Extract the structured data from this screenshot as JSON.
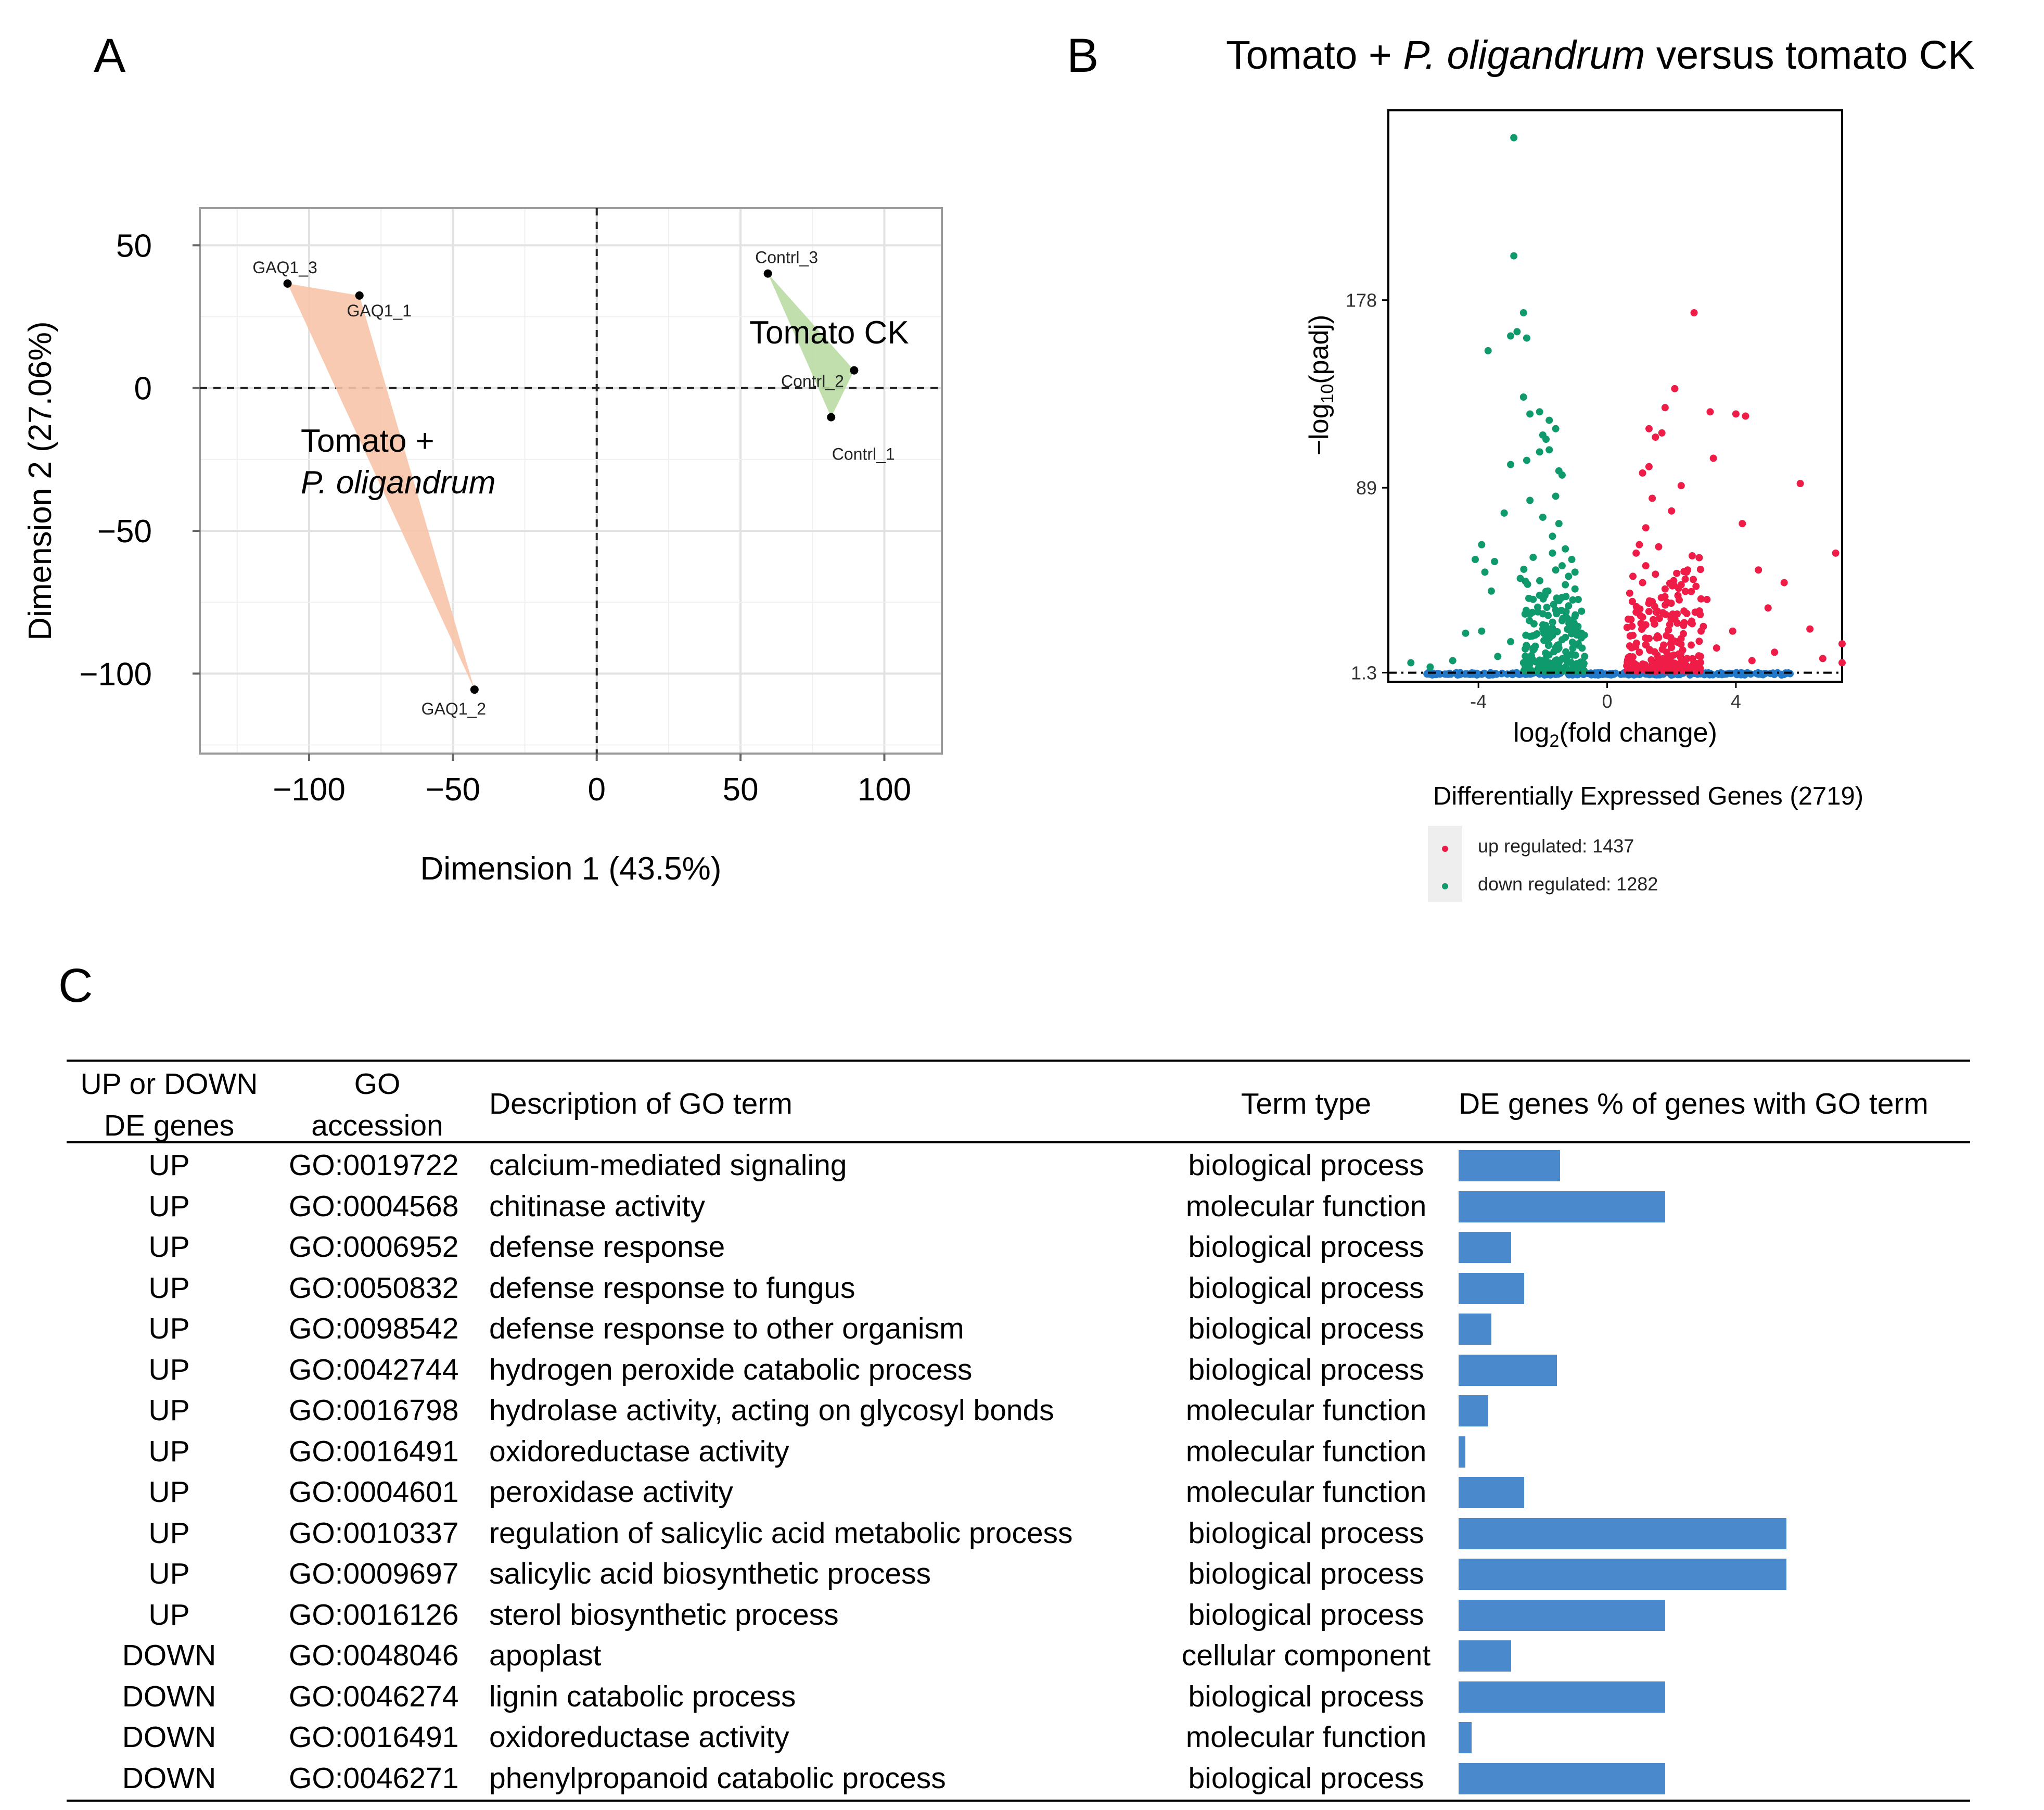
{
  "panels": {
    "a": {
      "letter": "A",
      "chart_data": {
        "type": "scatter",
        "xlabel": "Dimension 1 (43.5%)",
        "ylabel": "Dimension 2 (27.06%)",
        "xlim": [
          -138,
          120
        ],
        "ylim": [
          -128,
          63
        ],
        "x_ticks": [
          -100,
          -50,
          0,
          50,
          100
        ],
        "y_ticks": [
          50,
          0,
          -50,
          -100
        ],
        "x_tick_labels": [
          "−100",
          "−50",
          "0",
          "50",
          "100"
        ],
        "y_tick_labels": [
          "50",
          "0",
          "−50",
          "−100"
        ],
        "points": [
          {
            "label": "GAQ1_3",
            "x": -107.5,
            "y": 36.6,
            "group": "treat"
          },
          {
            "label": "GAQ1_1",
            "x": -82.5,
            "y": 32.4,
            "group": "treat"
          },
          {
            "label": "GAQ1_2",
            "x": -42.5,
            "y": -105.6,
            "group": "treat"
          },
          {
            "label": "Contrl_3",
            "x": 59.5,
            "y": 40.1,
            "group": "ck"
          },
          {
            "label": "Contrl_2",
            "x": 89.5,
            "y": 6.2,
            "group": "ck"
          },
          {
            "label": "Contrl_1",
            "x": 81.5,
            "y": -10.2,
            "group": "ck"
          }
        ],
        "groups": [
          {
            "id": "treat",
            "label_line1": "Tomato +",
            "label_line2": "P. oligandrum",
            "color": "#f7c4a8"
          },
          {
            "id": "ck",
            "label_line1": "Tomato CK",
            "label_line2": "",
            "color": "#b9dba4"
          }
        ]
      }
    },
    "b": {
      "letter": "B",
      "title_pre": "Tomato + ",
      "title_italic": "P. oligandrum",
      "title_post": " versus tomato CK",
      "chart_data": {
        "type": "scatter",
        "xlabel": "log2(fold change)",
        "ylabel": "−log10(padj)",
        "xlim": [
          -6.8,
          7.3
        ],
        "ylim": [
          -3,
          268
        ],
        "x_ticks": [
          -4,
          0,
          4
        ],
        "x_tick_labels": [
          "-4",
          "0",
          "4"
        ],
        "y_ticks": [
          1.3,
          89,
          178
        ],
        "y_tick_labels": [
          "1.3",
          "89",
          "178"
        ],
        "threshold": 1.3,
        "down_points": [
          [
            -2.9,
            255
          ],
          [
            -2.9,
            199
          ],
          [
            -2.6,
            172
          ],
          [
            -2.8,
            163
          ],
          [
            -3.0,
            161
          ],
          [
            -2.5,
            160
          ],
          [
            -3.7,
            154
          ],
          [
            -2.6,
            132
          ],
          [
            -2.1,
            125
          ],
          [
            -2.4,
            124
          ],
          [
            -1.8,
            121
          ],
          [
            -1.6,
            117
          ],
          [
            -2.0,
            114
          ],
          [
            -1.9,
            112
          ],
          [
            -1.8,
            107
          ],
          [
            -2.1,
            106
          ],
          [
            -3.0,
            100
          ],
          [
            -2.5,
            102
          ],
          [
            -1.5,
            97
          ],
          [
            -1.4,
            95
          ],
          [
            -1.6,
            85
          ],
          [
            -2.4,
            83
          ],
          [
            -3.2,
            77
          ],
          [
            -2.0,
            75
          ],
          [
            -1.5,
            72
          ],
          [
            -1.7,
            66
          ],
          [
            -3.9,
            62
          ],
          [
            -1.3,
            60
          ],
          [
            -1.7,
            58
          ],
          [
            -2.3,
            56
          ],
          [
            -4.1,
            55
          ],
          [
            -3.5,
            54
          ],
          [
            -1.1,
            55
          ],
          [
            -1.4,
            52
          ],
          [
            -1.6,
            50
          ],
          [
            -3.8,
            49
          ],
          [
            -1.0,
            49
          ],
          [
            -1.2,
            47
          ],
          [
            -2.7,
            46
          ],
          [
            -1.3,
            43
          ],
          [
            -3.6,
            40
          ],
          [
            -1.0,
            41
          ],
          [
            -2.1,
            38
          ],
          [
            -1.4,
            37
          ],
          [
            -0.9,
            36
          ],
          [
            -1.2,
            33
          ],
          [
            -1.6,
            31
          ],
          [
            -2.4,
            29
          ],
          [
            -1.0,
            28
          ],
          [
            -1.4,
            26
          ],
          [
            -3.9,
            21
          ],
          [
            -4.4,
            20
          ],
          [
            -2.0,
            22
          ],
          [
            -1.1,
            22
          ],
          [
            -0.8,
            20
          ],
          [
            -1.3,
            18
          ],
          [
            -1.7,
            19
          ],
          [
            -3.0,
            16
          ],
          [
            -0.9,
            15
          ],
          [
            -1.5,
            13
          ],
          [
            -2.3,
            12
          ],
          [
            -1.1,
            10
          ],
          [
            -3.4,
            9
          ],
          [
            -4.8,
            7
          ],
          [
            -0.7,
            9
          ],
          [
            -6.1,
            6
          ],
          [
            -5.5,
            4
          ],
          [
            -1.9,
            7
          ],
          [
            -2.6,
            6
          ]
        ],
        "up_points": [
          [
            2.7,
            172
          ],
          [
            2.1,
            136
          ],
          [
            1.8,
            127
          ],
          [
            3.2,
            125
          ],
          [
            4.0,
            124
          ],
          [
            4.3,
            123
          ],
          [
            1.3,
            117
          ],
          [
            1.7,
            115
          ],
          [
            1.5,
            113
          ],
          [
            3.3,
            103
          ],
          [
            1.3,
            99
          ],
          [
            6.0,
            91
          ],
          [
            1.1,
            96
          ],
          [
            2.3,
            90
          ],
          [
            1.4,
            84
          ],
          [
            2.0,
            78
          ],
          [
            4.2,
            72
          ],
          [
            1.2,
            70
          ],
          [
            7.1,
            58
          ],
          [
            1.6,
            61
          ],
          [
            1.0,
            62
          ],
          [
            0.9,
            58
          ],
          [
            4.7,
            50
          ],
          [
            2.5,
            50
          ],
          [
            1.2,
            52
          ],
          [
            1.5,
            48
          ],
          [
            0.8,
            47
          ],
          [
            5.5,
            44
          ],
          [
            2.3,
            43
          ],
          [
            1.1,
            44
          ],
          [
            1.8,
            41
          ],
          [
            0.7,
            39
          ],
          [
            3.1,
            36
          ],
          [
            1.4,
            35
          ],
          [
            5.0,
            32
          ],
          [
            6.3,
            22
          ],
          [
            0.9,
            30
          ],
          [
            2.0,
            28
          ],
          [
            2.6,
            25
          ],
          [
            1.2,
            24
          ],
          [
            3.9,
            21
          ],
          [
            0.8,
            19
          ],
          [
            1.6,
            18
          ],
          [
            2.2,
            16
          ],
          [
            0.7,
            14
          ],
          [
            3.4,
            13
          ],
          [
            1.0,
            11
          ],
          [
            5.2,
            11
          ],
          [
            6.7,
            8
          ],
          [
            2.9,
            9
          ],
          [
            1.8,
            7
          ],
          [
            4.5,
            7
          ],
          [
            7.3,
            15
          ],
          [
            7.3,
            6
          ],
          [
            0.9,
            5
          ]
        ],
        "legend_title": "Differentially Expressed Genes (2719)",
        "legend": [
          {
            "label": "up regulated: 1437",
            "color": "#ee1c47"
          },
          {
            "label": "down regulated: 1282",
            "color": "#0f9a6d"
          }
        ]
      },
      "colors": {
        "up": "#ee1c47",
        "down": "#0f9a6d",
        "ns": "#2178c8"
      }
    },
    "c": {
      "letter": "C",
      "headers": {
        "updown_line1": "UP or DOWN",
        "updown_line2": "DE genes",
        "go_line1": "GO",
        "go_line2": "accession",
        "description": "Description of GO term",
        "term_type": "Term type",
        "percent": "DE genes % of genes with GO term"
      },
      "chart_data": {
        "type": "bar",
        "orientation": "horizontal",
        "value_label": "DE genes % of genes with GO term",
        "bar_color": "#4a89cc",
        "max_value": 100,
        "rows": [
          {
            "updown": "UP",
            "go": "GO:0019722",
            "description": "calcium-mediated signaling",
            "term_type": "biological process",
            "value": 31
          },
          {
            "updown": "UP",
            "go": "GO:0004568",
            "description": "chitinase activity",
            "term_type": "molecular function",
            "value": 63
          },
          {
            "updown": "UP",
            "go": "GO:0006952",
            "description": "defense response",
            "term_type": "biological process",
            "value": 16
          },
          {
            "updown": "UP",
            "go": "GO:0050832",
            "description": "defense response to fungus",
            "term_type": "biological process",
            "value": 20
          },
          {
            "updown": "UP",
            "go": "GO:0098542",
            "description": "defense response to other organism",
            "term_type": "biological process",
            "value": 10
          },
          {
            "updown": "UP",
            "go": "GO:0042744",
            "description": "hydrogen peroxide catabolic process",
            "term_type": "biological process",
            "value": 30
          },
          {
            "updown": "UP",
            "go": "GO:0016798",
            "description": "hydrolase activity, acting on glycosyl bonds",
            "term_type": "molecular function",
            "value": 9
          },
          {
            "updown": "UP",
            "go": "GO:0016491",
            "description": "oxidoreductase activity",
            "term_type": "molecular function",
            "value": 2
          },
          {
            "updown": "UP",
            "go": "GO:0004601",
            "description": "peroxidase activity",
            "term_type": "molecular function",
            "value": 20
          },
          {
            "updown": "UP",
            "go": "GO:0010337",
            "description": "regulation of salicylic acid metabolic process",
            "term_type": "biological process",
            "value": 100
          },
          {
            "updown": "UP",
            "go": "GO:0009697",
            "description": "salicylic acid biosynthetic process",
            "term_type": "biological process",
            "value": 100
          },
          {
            "updown": "UP",
            "go": "GO:0016126",
            "description": "sterol biosynthetic process",
            "term_type": "biological process",
            "value": 63
          },
          {
            "updown": "DOWN",
            "go": "GO:0048046",
            "description": "apoplast",
            "term_type": "cellular component",
            "value": 16
          },
          {
            "updown": "DOWN",
            "go": "GO:0046274",
            "description": "lignin catabolic process",
            "term_type": "biological process",
            "value": 63
          },
          {
            "updown": "DOWN",
            "go": "GO:0016491",
            "description": "oxidoreductase activity",
            "term_type": "molecular function",
            "value": 4
          },
          {
            "updown": "DOWN",
            "go": "GO:0046271",
            "description": "phenylpropanoid catabolic process",
            "term_type": "biological process",
            "value": 63
          }
        ]
      }
    }
  }
}
